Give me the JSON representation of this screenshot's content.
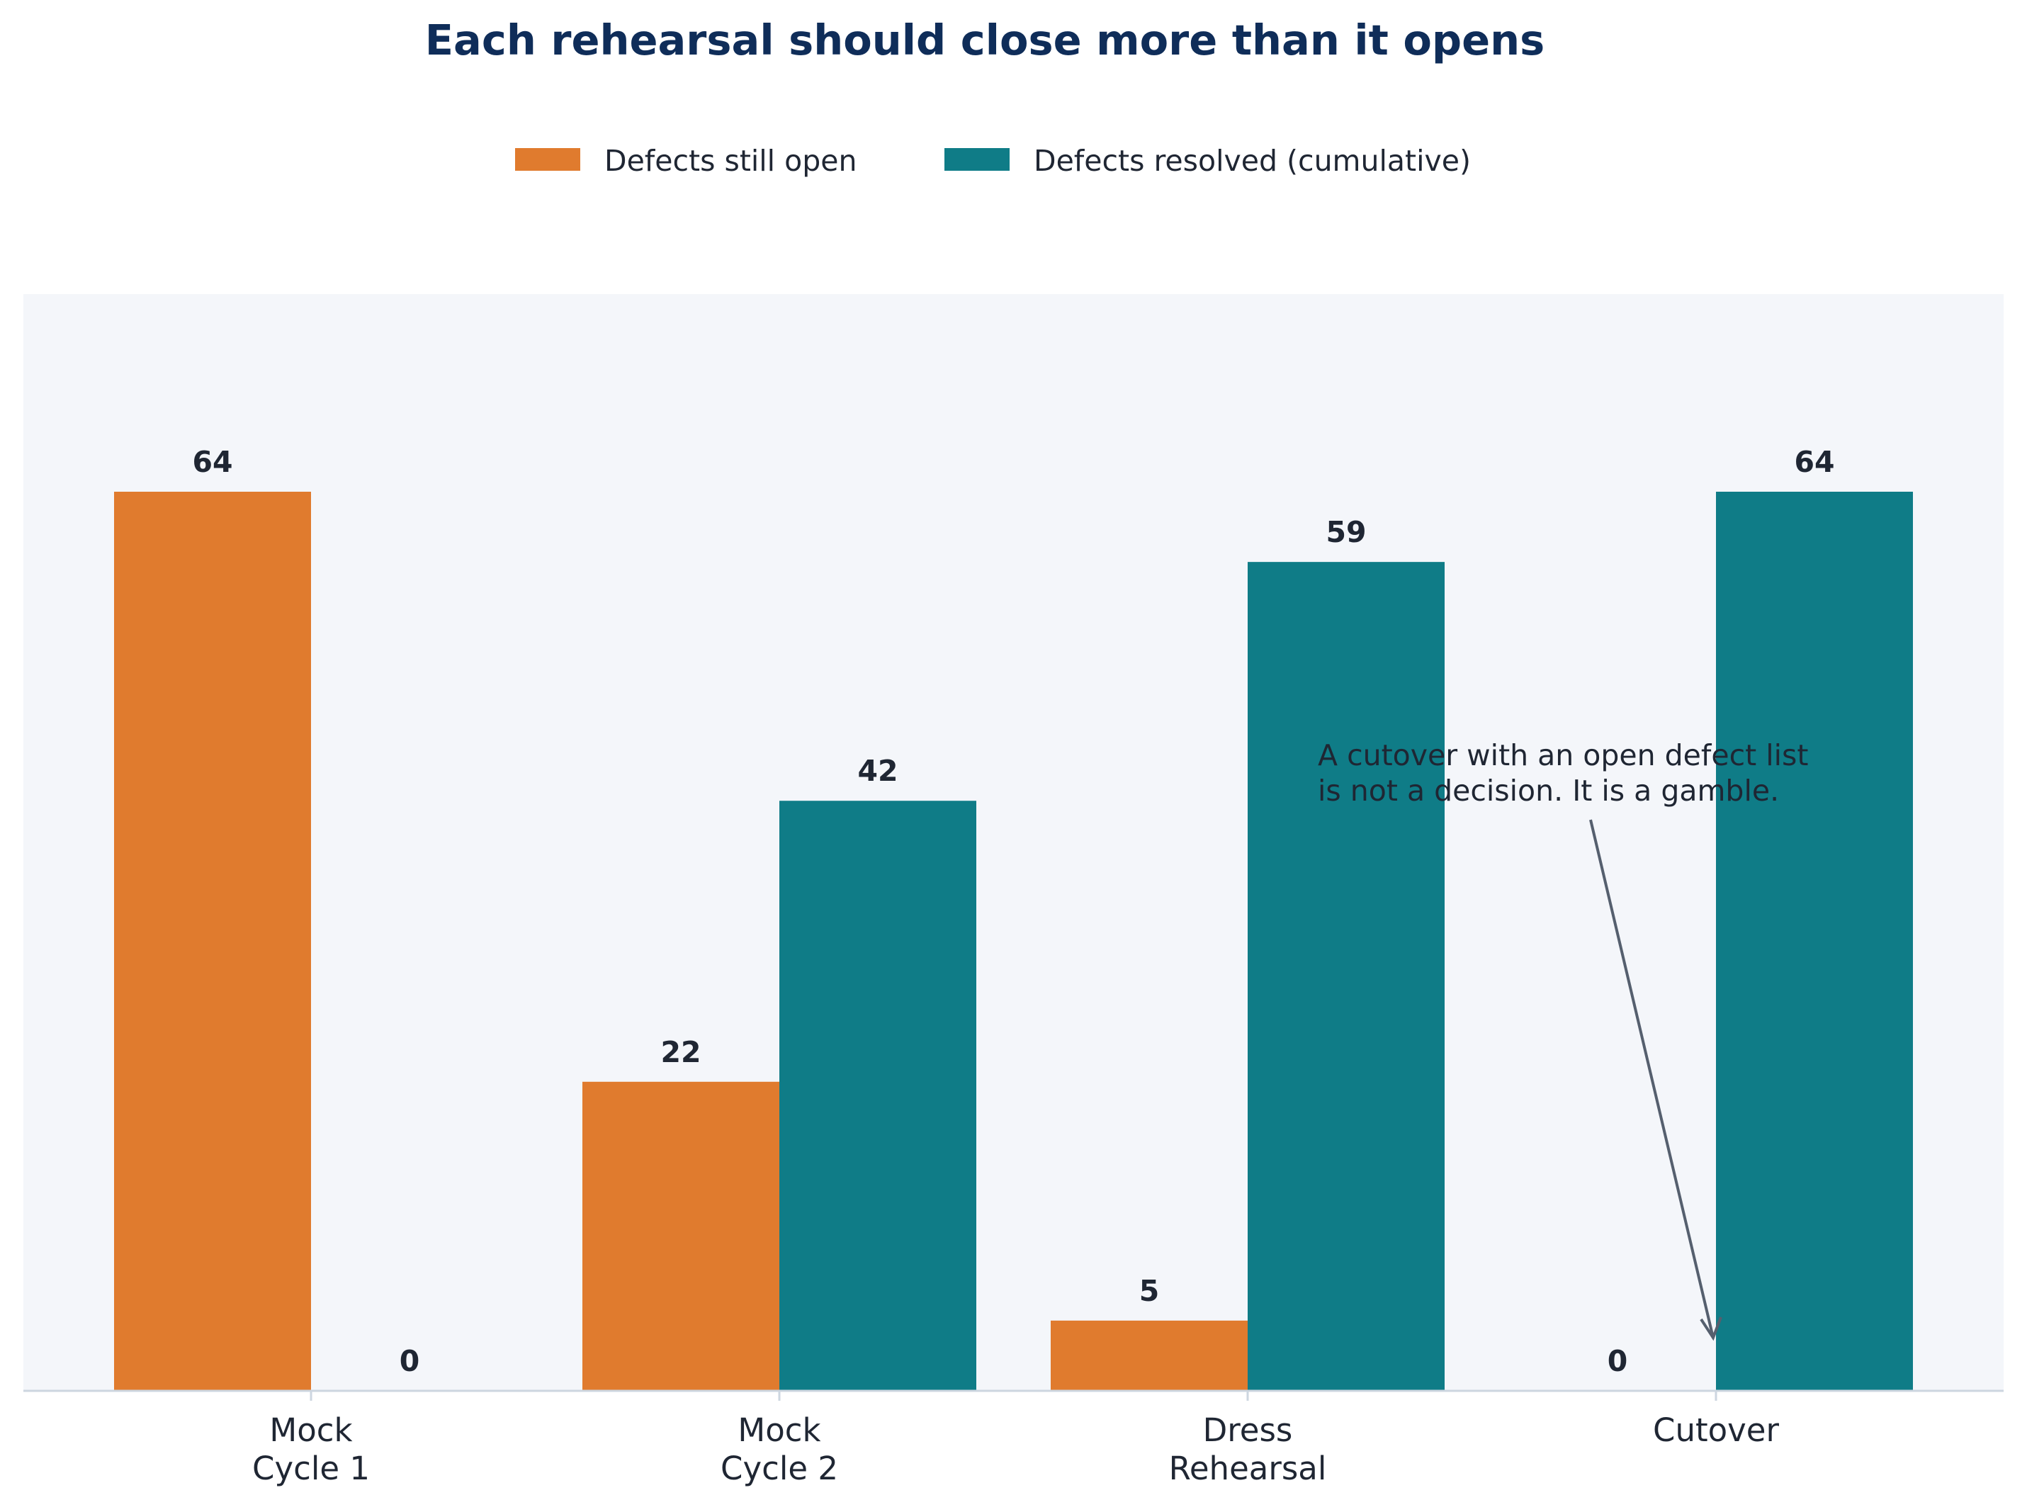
{
  "chart_data": {
    "type": "bar",
    "title": "Each rehearsal should close more than it opens",
    "categories": [
      [
        "Mock",
        "Cycle 1"
      ],
      [
        "Mock",
        "Cycle 2"
      ],
      [
        "Dress",
        "Rehearsal"
      ],
      [
        "Cutover"
      ]
    ],
    "series": [
      {
        "name": "Defects still open",
        "values": [
          64,
          22,
          5,
          0
        ],
        "color": "#e07b2e"
      },
      {
        "name": "Defects resolved (cumulative)",
        "values": [
          0,
          42,
          59,
          64
        ],
        "color": "#0f7c87"
      }
    ],
    "ylim": [
      0,
      64
    ],
    "grid": false,
    "legend_position": "top-center",
    "annotation": {
      "lines": [
        "A cutover with an open defect list",
        "is not a decision. It is a gamble."
      ],
      "points_to": {
        "category": "Cutover",
        "value": 0
      }
    },
    "colors": {
      "plot_background": "#f4f6fa",
      "axis": "#cdd6e0",
      "title": "#0f2d59",
      "text": "#1f2633",
      "arrow": "#555f6e"
    }
  }
}
